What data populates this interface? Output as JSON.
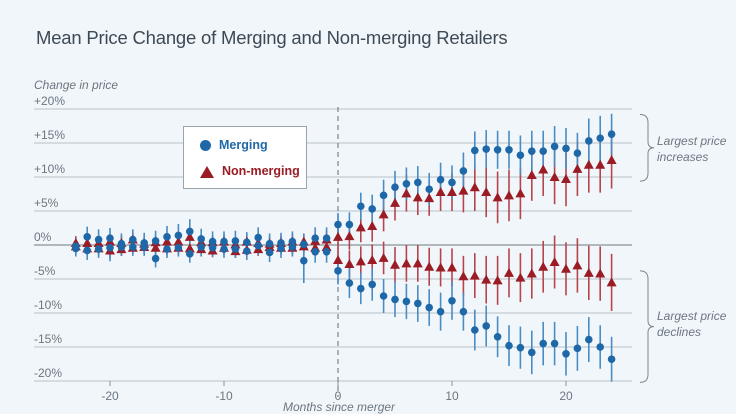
{
  "chart_data": {
    "type": "scatter",
    "title": "Mean Price Change of Merging and Non-merging Retailers",
    "ylabel": "Change in price",
    "xlabel": "Months since merger",
    "ylim": [
      -20,
      20
    ],
    "xlim": [
      -24,
      25
    ],
    "yticks": [
      {
        "value": 20,
        "label": "+20%"
      },
      {
        "value": 15,
        "label": "+15%"
      },
      {
        "value": 10,
        "label": "+10%"
      },
      {
        "value": 5,
        "label": "+5%"
      },
      {
        "value": 0,
        "label": "0%"
      },
      {
        "value": -5,
        "label": "-5%"
      },
      {
        "value": -10,
        "label": "-10%"
      },
      {
        "value": -15,
        "label": "-15%"
      },
      {
        "value": -20,
        "label": "-20%"
      }
    ],
    "xticks": [
      {
        "value": -20,
        "label": "-20"
      },
      {
        "value": -10,
        "label": "-10"
      },
      {
        "value": 0,
        "label": "0"
      },
      {
        "value": 10,
        "label": "10"
      },
      {
        "value": 20,
        "label": "20"
      }
    ],
    "grid": true,
    "merger_line_x": 0,
    "legend": {
      "position": "top-left",
      "entries": [
        {
          "label": "Merging",
          "marker": "circle",
          "color": "#1f68a8"
        },
        {
          "label": "Non-merging",
          "marker": "triangle",
          "color": "#9b1c24"
        }
      ]
    },
    "annotations": [
      {
        "group": "increases",
        "line1": "Largest price",
        "line2": "increases"
      },
      {
        "group": "declines",
        "line1": "Largest price",
        "line2": "declines"
      }
    ],
    "x": [
      -23,
      -22,
      -21,
      -20,
      -19,
      -18,
      -17,
      -16,
      -15,
      -14,
      -13,
      -12,
      -11,
      -10,
      -9,
      -8,
      -7,
      -6,
      -5,
      -4,
      -3,
      -2,
      -1,
      0,
      1,
      2,
      3,
      4,
      5,
      6,
      7,
      8,
      9,
      10,
      11,
      12,
      13,
      14,
      15,
      16,
      17,
      18,
      19,
      20,
      21,
      22,
      23,
      24
    ],
    "series": [
      {
        "name": "Merging (largest price increases)",
        "group": "increases",
        "kind": "merging",
        "values": [
          -0.2,
          1.2,
          0.8,
          1.0,
          0.2,
          0.8,
          0.3,
          0.6,
          1.2,
          1.4,
          2.0,
          0.9,
          0.5,
          0.5,
          0.6,
          0.4,
          1.1,
          0.2,
          0.3,
          0.5,
          0.1,
          1.0,
          1.0,
          3.0,
          3.0,
          5.7,
          5.3,
          7.3,
          8.5,
          9.0,
          9.2,
          8.2,
          9.6,
          9.2,
          10.9,
          13.9,
          14.1,
          14.0,
          14.0,
          13.2,
          13.8,
          13.8,
          14.5,
          14.2,
          13.5,
          15.3,
          15.7,
          16.3
        ],
        "err": [
          1.2,
          1.5,
          1.5,
          1.5,
          1.5,
          1.5,
          1.5,
          1.5,
          1.6,
          1.7,
          1.8,
          1.5,
          1.5,
          1.5,
          1.5,
          1.5,
          1.5,
          1.5,
          1.5,
          1.5,
          1.6,
          1.6,
          1.6,
          1.7,
          1.8,
          2.0,
          2.1,
          2.3,
          2.4,
          2.4,
          2.4,
          2.4,
          2.5,
          2.5,
          2.7,
          2.8,
          2.8,
          2.8,
          2.8,
          2.9,
          3.0,
          3.0,
          3.0,
          3.0,
          3.0,
          3.3,
          3.3,
          3.0
        ]
      },
      {
        "name": "Non-merging (largest price increases)",
        "group": "increases",
        "kind": "nonmerging",
        "values": [
          0.3,
          0.3,
          0.3,
          0.5,
          0.3,
          0.8,
          0.2,
          0.4,
          0.5,
          0.5,
          1.2,
          0.4,
          0.4,
          0.5,
          0.1,
          0.5,
          0.3,
          0.2,
          0.3,
          0.5,
          0.5,
          0.6,
          0.8,
          1.2,
          1.3,
          2.6,
          2.8,
          4.5,
          6.2,
          7.6,
          7.0,
          6.9,
          7.8,
          7.8,
          8.0,
          8.5,
          7.8,
          7.0,
          7.3,
          7.6,
          10.3,
          11.1,
          10.0,
          9.7,
          11.2,
          11.8,
          11.8,
          12.5
        ],
        "err": [
          1.0,
          1.0,
          1.0,
          1.1,
          1.0,
          1.1,
          1.0,
          1.0,
          1.0,
          1.1,
          1.3,
          1.1,
          1.0,
          1.0,
          1.0,
          1.0,
          1.0,
          1.0,
          1.0,
          1.1,
          1.1,
          1.2,
          1.3,
          1.8,
          2.0,
          2.2,
          2.3,
          2.5,
          2.6,
          2.7,
          2.6,
          2.6,
          2.8,
          2.8,
          3.2,
          3.5,
          3.7,
          3.8,
          3.8,
          3.8,
          3.8,
          3.9,
          4.0,
          4.0,
          4.0,
          4.1,
          4.1,
          4.2
        ]
      },
      {
        "name": "Merging (largest price declines)",
        "group": "declines",
        "kind": "merging",
        "values": [
          -0.5,
          -0.8,
          -0.6,
          -0.4,
          -0.3,
          -0.3,
          -0.3,
          -2.0,
          -0.6,
          -0.4,
          -1.3,
          -0.3,
          -0.4,
          -0.6,
          -0.6,
          -0.9,
          -0.1,
          -1.1,
          -0.5,
          -0.3,
          -2.3,
          -1.0,
          -1.0,
          -3.8,
          -5.6,
          -6.4,
          -5.8,
          -7.5,
          -8.0,
          -8.3,
          -8.6,
          -9.2,
          -9.8,
          -8.2,
          -9.8,
          -12.5,
          -11.9,
          -13.5,
          -14.8,
          -15.1,
          -15.8,
          -14.5,
          -14.5,
          -16.0,
          -15.2,
          -13.9,
          -15.0,
          -16.8
        ],
        "err": [
          1.2,
          1.4,
          1.3,
          2.0,
          1.3,
          1.3,
          1.3,
          1.3,
          1.3,
          1.3,
          1.3,
          1.4,
          1.3,
          1.3,
          1.3,
          1.3,
          1.4,
          1.4,
          1.4,
          1.4,
          3.3,
          1.6,
          1.6,
          2.0,
          2.2,
          2.3,
          2.4,
          2.5,
          2.6,
          2.6,
          2.7,
          2.7,
          2.8,
          2.8,
          2.8,
          3.0,
          3.0,
          3.0,
          3.0,
          3.1,
          3.2,
          3.2,
          3.2,
          3.2,
          3.3,
          3.3,
          3.2,
          3.3
        ]
      },
      {
        "name": "Non-merging (largest price declines)",
        "group": "declines",
        "kind": "nonmerging",
        "values": [
          -0.2,
          -0.5,
          -0.5,
          -0.8,
          -0.6,
          -0.4,
          -0.3,
          -0.4,
          -0.5,
          -0.4,
          -0.5,
          -0.6,
          -0.8,
          -0.4,
          -0.9,
          -0.7,
          -0.6,
          -0.3,
          -0.4,
          -0.4,
          -0.2,
          -0.4,
          -0.3,
          -2.2,
          -2.8,
          -2.4,
          -2.2,
          -1.9,
          -2.9,
          -2.7,
          -2.7,
          -3.2,
          -3.3,
          -3.3,
          -4.6,
          -4.5,
          -5.1,
          -5.2,
          -4.1,
          -4.8,
          -4.2,
          -3.2,
          -2.5,
          -3.5,
          -3.0,
          -4.1,
          -4.2,
          -5.5
        ],
        "err": [
          1.0,
          1.0,
          1.0,
          1.1,
          1.0,
          1.0,
          1.0,
          1.0,
          1.0,
          1.0,
          1.0,
          1.0,
          1.0,
          1.0,
          1.0,
          1.0,
          1.0,
          1.0,
          1.0,
          1.0,
          1.0,
          1.0,
          1.0,
          1.8,
          2.0,
          2.2,
          2.3,
          2.4,
          2.6,
          2.7,
          2.7,
          2.8,
          2.8,
          2.8,
          3.0,
          3.3,
          3.5,
          3.6,
          3.6,
          3.6,
          3.7,
          3.8,
          3.9,
          3.9,
          4.0,
          4.0,
          4.0,
          4.2
        ]
      }
    ]
  }
}
